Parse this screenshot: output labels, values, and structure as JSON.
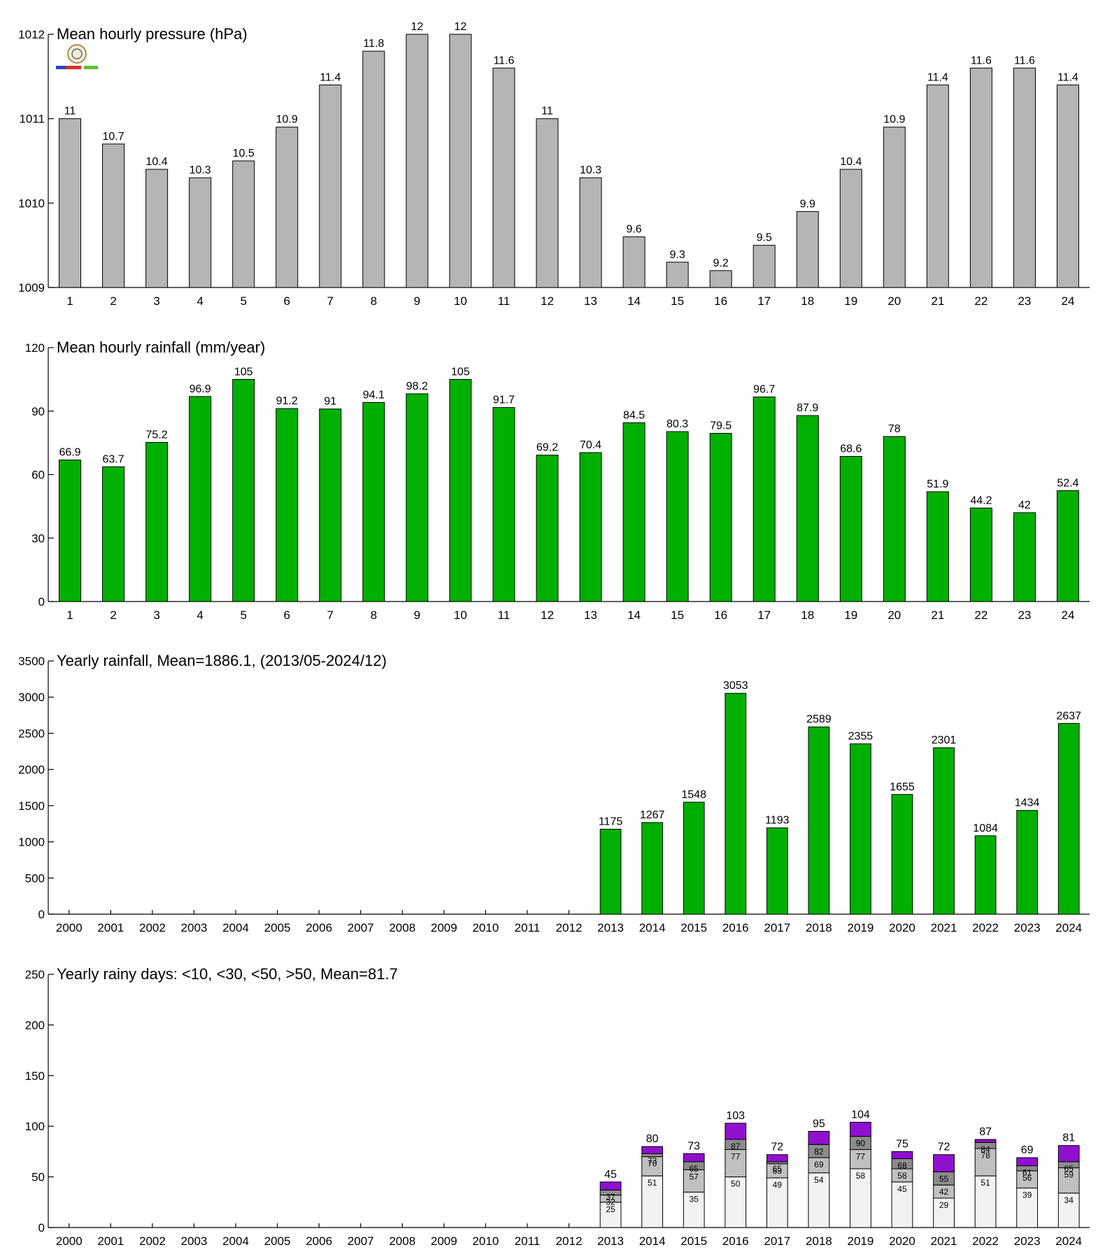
{
  "chart_data": [
    {
      "type": "bar",
      "title": "Mean hourly pressure (hPa)",
      "categories": [
        "1",
        "2",
        "3",
        "4",
        "5",
        "6",
        "7",
        "8",
        "9",
        "10",
        "11",
        "12",
        "13",
        "14",
        "15",
        "16",
        "17",
        "18",
        "19",
        "20",
        "21",
        "22",
        "23",
        "24"
      ],
      "values": [
        1011,
        1010.7,
        1010.4,
        1010.3,
        1010.5,
        1010.9,
        1011.4,
        1011.8,
        1012,
        1012,
        1011.6,
        1011,
        1010.3,
        1009.6,
        1009.3,
        1009.2,
        1009.5,
        1009.9,
        1010.4,
        1010.9,
        1011.4,
        1011.6,
        1011.6,
        1011.4
      ],
      "labels": [
        "11",
        "10.7",
        "10.4",
        "10.3",
        "10.5",
        "10.9",
        "11.4",
        "11.8",
        "12",
        "12",
        "11.6",
        "11",
        "10.3",
        "9.6",
        "9.3",
        "9.2",
        "9.5",
        "9.9",
        "10.4",
        "10.9",
        "11.4",
        "11.6",
        "11.6",
        "11.4"
      ],
      "ylim": [
        1009,
        1012
      ],
      "yticks": [
        1009,
        1010,
        1011,
        1012
      ],
      "color": "#b5b5b5",
      "grid": false
    },
    {
      "type": "bar",
      "title": "Mean hourly rainfall (mm/year)",
      "categories": [
        "1",
        "2",
        "3",
        "4",
        "5",
        "6",
        "7",
        "8",
        "9",
        "10",
        "11",
        "12",
        "13",
        "14",
        "15",
        "16",
        "17",
        "18",
        "19",
        "20",
        "21",
        "22",
        "23",
        "24"
      ],
      "values": [
        66.9,
        63.7,
        75.2,
        96.9,
        105,
        91.2,
        91,
        94.1,
        98.2,
        105,
        91.7,
        69.2,
        70.4,
        84.5,
        80.3,
        79.5,
        96.7,
        87.9,
        68.6,
        78,
        51.9,
        44.2,
        42,
        52.4
      ],
      "labels": [
        "66.9",
        "63.7",
        "75.2",
        "96.9",
        "105",
        "91.2",
        "91",
        "94.1",
        "98.2",
        "105",
        "91.7",
        "69.2",
        "70.4",
        "84.5",
        "80.3",
        "79.5",
        "96.7",
        "87.9",
        "68.6",
        "78",
        "51.9",
        "44.2",
        "42",
        "52.4"
      ],
      "ylim": [
        0,
        120
      ],
      "yticks": [
        0,
        30,
        60,
        90,
        120
      ],
      "color": "#00b000",
      "grid": false
    },
    {
      "type": "bar",
      "title": "Yearly rainfall, Mean=1886.1, (2013/05-2024/12)",
      "categories": [
        "2000",
        "2001",
        "2002",
        "2003",
        "2004",
        "2005",
        "2006",
        "2007",
        "2008",
        "2009",
        "2010",
        "2011",
        "2012",
        "2013",
        "2014",
        "2015",
        "2016",
        "2017",
        "2018",
        "2019",
        "2020",
        "2021",
        "2022",
        "2023",
        "2024"
      ],
      "values": [
        null,
        null,
        null,
        null,
        null,
        null,
        null,
        null,
        null,
        null,
        null,
        null,
        null,
        1175,
        1267,
        1548,
        3053,
        1193,
        2589,
        2355,
        1655,
        2301,
        1084,
        1434,
        2637
      ],
      "labels": [
        "",
        "",
        "",
        "",
        "",
        "",
        "",
        "",
        "",
        "",
        "",
        "",
        "",
        "1175",
        "1267",
        "1548",
        "3053",
        "1193",
        "2589",
        "2355",
        "1655",
        "2301",
        "1084",
        "1434",
        "2637"
      ],
      "ylim": [
        0,
        3500
      ],
      "yticks": [
        0,
        500,
        1000,
        1500,
        2000,
        2500,
        3000,
        3500
      ],
      "color": "#00b000",
      "grid": false
    },
    {
      "type": "bar",
      "stacked": true,
      "title": "Yearly rainy days: <10, <30, <50, >50, Mean=81.7",
      "categories": [
        "2000",
        "2001",
        "2002",
        "2003",
        "2004",
        "2005",
        "2006",
        "2007",
        "2008",
        "2009",
        "2010",
        "2011",
        "2012",
        "2013",
        "2014",
        "2015",
        "2016",
        "2017",
        "2018",
        "2019",
        "2020",
        "2021",
        "2022",
        "2023",
        "2024"
      ],
      "cumulative_labels": [
        null,
        null,
        null,
        null,
        null,
        null,
        null,
        null,
        null,
        null,
        null,
        null,
        null,
        [
          "25",
          "32",
          "37"
        ],
        [
          "51",
          "70",
          "73"
        ],
        [
          "35",
          "57",
          "65"
        ],
        [
          "50",
          "77",
          "87"
        ],
        [
          "49",
          "63",
          "65"
        ],
        [
          "54",
          "69",
          "82"
        ],
        [
          "58",
          "77",
          "90"
        ],
        [
          "45",
          "58",
          "68"
        ],
        [
          "29",
          "42",
          "55"
        ],
        [
          "51",
          "78",
          "84"
        ],
        [
          "39",
          "56",
          "61"
        ],
        [
          "34",
          "59",
          "65"
        ]
      ],
      "series": [
        {
          "name": "<10",
          "color": "#f2f2f2",
          "values": [
            null,
            null,
            null,
            null,
            null,
            null,
            null,
            null,
            null,
            null,
            null,
            null,
            null,
            25,
            51,
            35,
            50,
            49,
            54,
            58,
            45,
            29,
            51,
            39,
            34
          ]
        },
        {
          "name": "<30",
          "color": "#c0c0c0",
          "values": [
            null,
            null,
            null,
            null,
            null,
            null,
            null,
            null,
            null,
            null,
            null,
            null,
            null,
            7,
            19,
            22,
            27,
            14,
            15,
            19,
            13,
            13,
            27,
            17,
            25
          ]
        },
        {
          "name": "<50",
          "color": "#8c8c8c",
          "values": [
            null,
            null,
            null,
            null,
            null,
            null,
            null,
            null,
            null,
            null,
            null,
            null,
            null,
            5,
            3,
            8,
            10,
            2,
            13,
            13,
            10,
            13,
            6,
            5,
            6
          ]
        },
        {
          "name": ">50",
          "color": "#9010d0",
          "values": [
            null,
            null,
            null,
            null,
            null,
            null,
            null,
            null,
            null,
            null,
            null,
            null,
            null,
            8,
            7,
            8,
            16,
            7,
            13,
            14,
            7,
            17,
            3,
            8,
            16
          ]
        }
      ],
      "totals": [
        null,
        null,
        null,
        null,
        null,
        null,
        null,
        null,
        null,
        null,
        null,
        null,
        null,
        45,
        80,
        73,
        103,
        72,
        95,
        104,
        75,
        72,
        87,
        69,
        81
      ],
      "ylim": [
        0,
        250
      ],
      "yticks": [
        0,
        50,
        100,
        150,
        200,
        250
      ],
      "grid": false
    }
  ]
}
